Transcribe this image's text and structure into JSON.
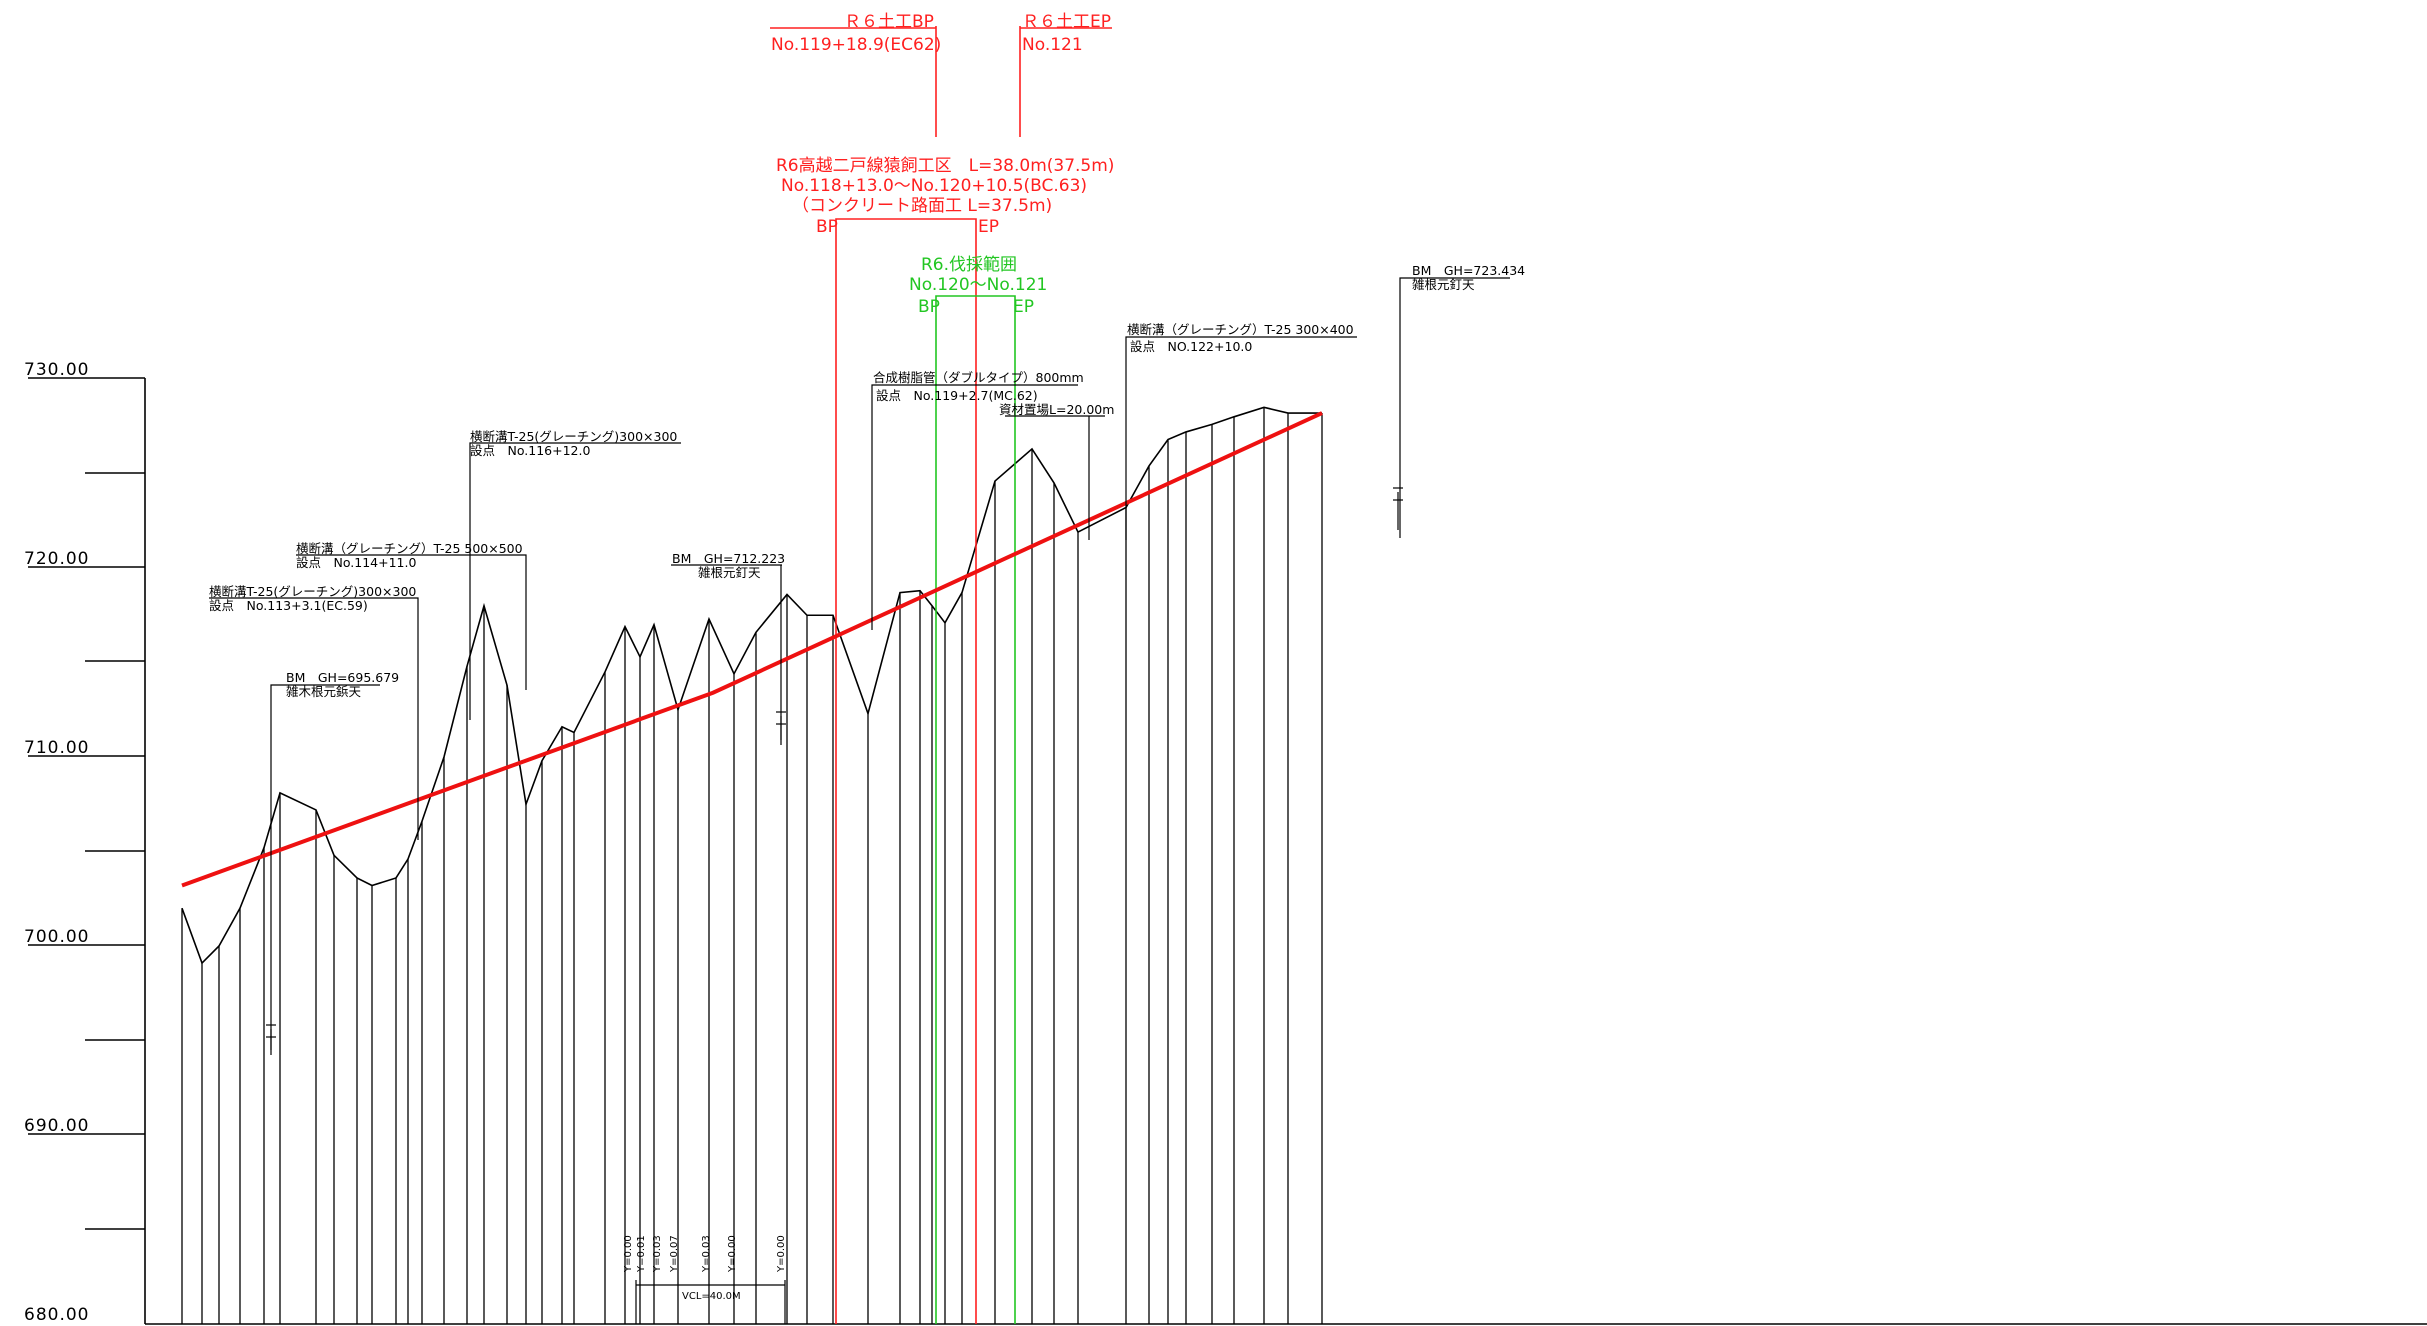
{
  "colors": {
    "ink": "#000000",
    "red": "#ff2020",
    "green": "#22c622",
    "plan_line": "#ee1111"
  },
  "chart_data": {
    "type": "line",
    "ylim": [
      680,
      730
    ],
    "y_ticks": [
      "730.00",
      "720.00",
      "710.00",
      "700.00",
      "690.00",
      "680.00"
    ],
    "ground_profile": [
      [
        0,
        702
      ],
      [
        20,
        699.1
      ],
      [
        37,
        700
      ],
      [
        58,
        702
      ],
      [
        82,
        705.2
      ],
      [
        98,
        708.1
      ],
      [
        134,
        707.2
      ],
      [
        152,
        704.8
      ],
      [
        175,
        703.6
      ],
      [
        190,
        703.2
      ],
      [
        214,
        703.6
      ],
      [
        226,
        704.6
      ],
      [
        240,
        706.6
      ],
      [
        262,
        710
      ],
      [
        285,
        714.8
      ],
      [
        302,
        718
      ],
      [
        325,
        713.8
      ],
      [
        344,
        707.5
      ],
      [
        360,
        709.8
      ],
      [
        380,
        711.6
      ],
      [
        392,
        711.3
      ],
      [
        423,
        714.5
      ],
      [
        443,
        716.9
      ],
      [
        458,
        715.3
      ],
      [
        472,
        717
      ],
      [
        496,
        712.5
      ],
      [
        527,
        717.3
      ],
      [
        552,
        714.4
      ],
      [
        574,
        716.6
      ],
      [
        605,
        718.6
      ],
      [
        625,
        717.5
      ],
      [
        651,
        717.5
      ],
      [
        686,
        712.3
      ],
      [
        718,
        718.7
      ],
      [
        738,
        718.8
      ],
      [
        750,
        718
      ],
      [
        763,
        717.1
      ],
      [
        780,
        718.7
      ],
      [
        813,
        724.6
      ],
      [
        850,
        726.3
      ],
      [
        872,
        724.5
      ],
      [
        896,
        721.9
      ],
      [
        944,
        723.2
      ],
      [
        967,
        725.4
      ],
      [
        986,
        726.8
      ],
      [
        1004,
        727.2
      ],
      [
        1030,
        727.6
      ],
      [
        1052,
        728
      ],
      [
        1082,
        728.5
      ],
      [
        1106,
        728.2
      ],
      [
        1140,
        728.2
      ]
    ],
    "plan_line": [
      [
        0,
        703.2
      ],
      [
        531,
        713.4
      ],
      [
        1140,
        728.2
      ]
    ],
    "station_lines_x": [
      0,
      20,
      37,
      58,
      82,
      98,
      134,
      152,
      175,
      190,
      214,
      226,
      240,
      262,
      285,
      302,
      325,
      344,
      360,
      380,
      392,
      423,
      443,
      458,
      472,
      496,
      527,
      552,
      574,
      605,
      625,
      651,
      686,
      718,
      738,
      750,
      763,
      780,
      813,
      850,
      872,
      896,
      944,
      967,
      986,
      1004,
      1030,
      1052,
      1082,
      1106,
      1140
    ]
  },
  "red_labels": {
    "bp_top": "Ｒ６土工BP",
    "bp_station": "No.119+18.9(EC62)",
    "ep_top": "Ｒ６土工EP",
    "ep_station": "No.121",
    "section_title": "R6高越二戸線猿飼工区　L=38.0m(37.5m)",
    "section_range": "No.118+13.0～No.120+10.5(BC.63)",
    "section_note": "（コンクリート路面工 L=37.5m)",
    "bp": "BP",
    "ep": "EP"
  },
  "green_labels": {
    "title": "R6.伐採範囲",
    "range": "No.120～No.121",
    "bp": "BP",
    "ep": "EP"
  },
  "notes": {
    "bm_right_1": "BM　GH=723.434",
    "bm_right_2": "雑根元釘天",
    "drain_right_1": "横断溝（グレーチング）T-25 300×400",
    "drain_right_2": "設点　NO.122+10.0",
    "pipe_1": "合成樹脂管（ダブルタイプ）800mm",
    "pipe_2": "設点　No.119+2.7(MC.62)",
    "storage": "資材置場L=20.00m",
    "drain_mid_1": "横断溝T-25(グレーチング)300×300",
    "drain_mid_2": "設点　No.116+12.0",
    "bm_mid_1": "BM　GH=712.223",
    "bm_mid_2": "雑根元釘天",
    "drain_a_1": "横断溝（グレーチング）T-25 500×500",
    "drain_a_2": "設点　No.114+11.0",
    "drain_b_1": "横断溝T-25(グレーチング)300×300",
    "drain_b_2": "設点　No.113+3.1(EC.59)",
    "bm_left_1": "BM　GH=695.679",
    "bm_left_2": "雑木根元鋲天",
    "vcl": "VCL=40.0M",
    "y_values": [
      "Y=0.00",
      "Y=0.01",
      "Y=0.03",
      "Y=0.07",
      "Y=0.03",
      "Y=0.00",
      "Y=0.00"
    ]
  }
}
